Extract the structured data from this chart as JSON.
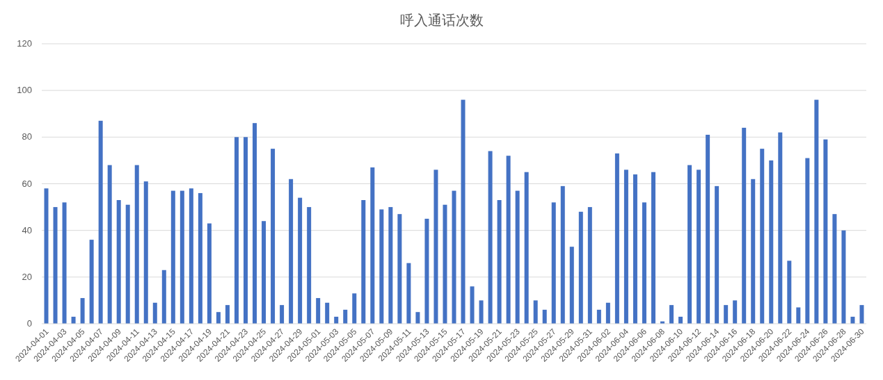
{
  "chart_data": {
    "type": "bar",
    "title": "呼入通话次数",
    "categories": [
      "2024-04-01",
      null,
      "2024-04-03",
      null,
      "2024-04-05",
      null,
      "2024-04-07",
      null,
      "2024-04-09",
      null,
      "2024-04-11",
      null,
      "2024-04-13",
      null,
      "2024-04-15",
      null,
      "2024-04-17",
      null,
      "2024-04-19",
      null,
      "2024-04-21",
      null,
      "2024-04-23",
      null,
      "2024-04-25",
      null,
      "2024-04-27",
      null,
      "2024-04-29",
      null,
      "2024-05-01",
      null,
      "2024-05-03",
      null,
      "2024-05-05",
      null,
      "2024-05-07",
      null,
      "2024-05-09",
      null,
      "2024-05-11",
      null,
      "2024-05-13",
      null,
      "2024-05-15",
      null,
      "2024-05-17",
      null,
      "2024-05-19",
      null,
      "2024-05-21",
      null,
      "2024-05-23",
      null,
      "2024-05-25",
      null,
      "2024-05-27",
      null,
      "2024-05-29",
      null,
      "2024-05-31",
      null,
      "2024-06-02",
      null,
      "2024-06-04",
      null,
      "2024-06-06",
      null,
      "2024-06-08",
      null,
      "2024-06-10",
      null,
      "2024-06-12",
      null,
      "2024-06-14",
      null,
      "2024-06-16",
      null,
      "2024-06-18",
      null,
      "2024-06-20",
      null,
      "2024-06-22",
      null,
      "2024-06-24",
      null,
      "2024-06-26",
      null,
      "2024-06-28",
      null,
      "2024-06-30"
    ],
    "values": [
      58,
      50,
      52,
      3,
      11,
      36,
      87,
      68,
      53,
      51,
      68,
      61,
      9,
      23,
      57,
      57,
      58,
      56,
      43,
      5,
      8,
      80,
      80,
      86,
      44,
      75,
      8,
      62,
      54,
      50,
      11,
      9,
      3,
      6,
      13,
      53,
      67,
      49,
      50,
      47,
      26,
      5,
      45,
      66,
      51,
      57,
      96,
      16,
      10,
      74,
      53,
      72,
      57,
      65,
      10,
      6,
      52,
      59,
      33,
      48,
      50,
      6,
      9,
      73,
      66,
      64,
      52,
      65,
      1,
      8,
      3,
      68,
      66,
      81,
      59,
      8,
      10,
      84,
      62,
      75,
      70,
      82,
      27,
      7,
      71,
      96,
      79,
      47,
      40,
      3,
      8
    ],
    "color": "#4472c4",
    "ylim": [
      0,
      120
    ],
    "yticks": [
      0,
      20,
      40,
      60,
      80,
      100,
      120
    ],
    "grid": "y"
  }
}
